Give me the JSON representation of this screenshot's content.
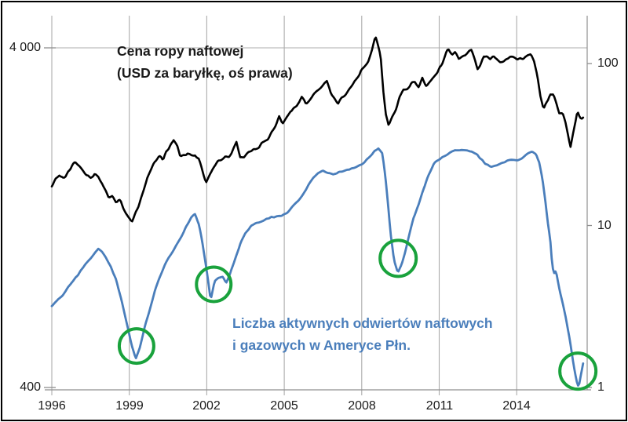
{
  "figure": {
    "background": "#FFFFFF",
    "border_color": "#000000",
    "grid_color": "#ACACAC",
    "axis_color": "#8F8F8F",
    "text_color": "#1A1A1A"
  },
  "chart_data": {
    "type": "line",
    "title": "",
    "x_axis": {
      "scale": "linear",
      "range": [
        1995.8,
        2016.75
      ],
      "ticks": [
        1996,
        1999,
        2002,
        2005,
        2008,
        2011,
        2014
      ],
      "tick_labels": [
        "1996",
        "1999",
        "2002",
        "2005",
        "2008",
        "2011",
        "2014"
      ]
    },
    "left_axis": {
      "scale": "log",
      "range": [
        400,
        5000
      ],
      "ticks": [
        4000,
        400
      ],
      "tick_labels": [
        "4 000",
        "400"
      ]
    },
    "right_axis": {
      "scale": "log",
      "range": [
        1,
        200
      ],
      "ticks": [
        100,
        10,
        1
      ],
      "tick_labels": [
        "100",
        "10",
        "1"
      ]
    },
    "grid": {
      "vertical_at_x_ticks": true,
      "horizontal_at_left_values": [
        4000
      ],
      "legend": "none"
    },
    "series": [
      {
        "id": "oil_price",
        "name": "Cena ropy naftowej (USD za baryłkę, oś prawa)",
        "axis": "right",
        "color": "#000000",
        "width": 2.6,
        "points": [
          [
            1996.0,
            17.5
          ],
          [
            1996.15,
            19
          ],
          [
            1996.3,
            20.5
          ],
          [
            1996.45,
            19.5
          ],
          [
            1996.6,
            21
          ],
          [
            1996.75,
            23
          ],
          [
            1996.9,
            24.5
          ],
          [
            1997.05,
            23.5
          ],
          [
            1997.2,
            22
          ],
          [
            1997.35,
            20.5
          ],
          [
            1997.5,
            20
          ],
          [
            1997.65,
            21
          ],
          [
            1997.8,
            20
          ],
          [
            1997.95,
            18.5
          ],
          [
            1998.1,
            16.5
          ],
          [
            1998.2,
            14.8
          ],
          [
            1998.35,
            15.5
          ],
          [
            1998.5,
            13.8
          ],
          [
            1998.65,
            14.5
          ],
          [
            1998.8,
            12.8
          ],
          [
            1998.95,
            11.4
          ],
          [
            1999.1,
            10.4
          ],
          [
            1999.25,
            12
          ],
          [
            1999.4,
            14
          ],
          [
            1999.55,
            16.5
          ],
          [
            1999.7,
            20
          ],
          [
            1999.85,
            22.5
          ],
          [
            2000.0,
            25.5
          ],
          [
            2000.15,
            27.5
          ],
          [
            2000.3,
            25.5
          ],
          [
            2000.45,
            29
          ],
          [
            2000.6,
            32
          ],
          [
            2000.72,
            34
          ],
          [
            2000.85,
            31.5
          ],
          [
            2000.97,
            26.5
          ],
          [
            2001.1,
            26.5
          ],
          [
            2001.25,
            27.5
          ],
          [
            2001.4,
            26.8
          ],
          [
            2001.55,
            27.5
          ],
          [
            2001.7,
            25.5
          ],
          [
            2001.85,
            21
          ],
          [
            2001.97,
            18
          ],
          [
            2002.1,
            20.5
          ],
          [
            2002.25,
            23
          ],
          [
            2002.4,
            25
          ],
          [
            2002.55,
            25.5
          ],
          [
            2002.7,
            26.8
          ],
          [
            2002.85,
            26.5
          ],
          [
            2003.0,
            29.5
          ],
          [
            2003.15,
            33
          ],
          [
            2003.3,
            26
          ],
          [
            2003.45,
            26.5
          ],
          [
            2003.6,
            28
          ],
          [
            2003.75,
            29
          ],
          [
            2003.9,
            29.5
          ],
          [
            2004.05,
            31
          ],
          [
            2004.2,
            33.5
          ],
          [
            2004.35,
            34
          ],
          [
            2004.5,
            37
          ],
          [
            2004.65,
            41
          ],
          [
            2004.8,
            47
          ],
          [
            2004.93,
            42
          ],
          [
            2005.08,
            46
          ],
          [
            2005.23,
            51
          ],
          [
            2005.38,
            53
          ],
          [
            2005.53,
            58
          ],
          [
            2005.68,
            63
          ],
          [
            2005.83,
            58
          ],
          [
            2005.96,
            59
          ],
          [
            2006.1,
            63
          ],
          [
            2006.25,
            68
          ],
          [
            2006.4,
            71
          ],
          [
            2006.55,
            75
          ],
          [
            2006.65,
            77
          ],
          [
            2006.8,
            66
          ],
          [
            2006.95,
            60
          ],
          [
            2007.08,
            55
          ],
          [
            2007.2,
            60
          ],
          [
            2007.35,
            64
          ],
          [
            2007.5,
            69
          ],
          [
            2007.65,
            73
          ],
          [
            2007.8,
            79
          ],
          [
            2007.95,
            90
          ],
          [
            2008.1,
            96
          ],
          [
            2008.25,
            104
          ],
          [
            2008.4,
            122
          ],
          [
            2008.53,
            146
          ],
          [
            2008.63,
            130
          ],
          [
            2008.73,
            112
          ],
          [
            2008.83,
            68
          ],
          [
            2008.93,
            48
          ],
          [
            2009.03,
            42
          ],
          [
            2009.15,
            46
          ],
          [
            2009.3,
            51
          ],
          [
            2009.45,
            61
          ],
          [
            2009.6,
            69
          ],
          [
            2009.75,
            68
          ],
          [
            2009.9,
            74
          ],
          [
            2010.05,
            77
          ],
          [
            2010.2,
            73
          ],
          [
            2010.35,
            82
          ],
          [
            2010.5,
            74
          ],
          [
            2010.65,
            77
          ],
          [
            2010.8,
            83
          ],
          [
            2010.95,
            90
          ],
          [
            2011.1,
            100
          ],
          [
            2011.25,
            118
          ],
          [
            2011.35,
            124
          ],
          [
            2011.5,
            112
          ],
          [
            2011.62,
            117
          ],
          [
            2011.75,
            107
          ],
          [
            2011.88,
            111
          ],
          [
            2012.0,
            111
          ],
          [
            2012.12,
            118
          ],
          [
            2012.25,
            121
          ],
          [
            2012.38,
            106
          ],
          [
            2012.48,
            90
          ],
          [
            2012.6,
            99
          ],
          [
            2012.72,
            112
          ],
          [
            2012.85,
            113
          ],
          [
            2012.97,
            108
          ],
          [
            2013.1,
            113
          ],
          [
            2013.22,
            108
          ],
          [
            2013.35,
            102
          ],
          [
            2013.5,
            104
          ],
          [
            2013.62,
            109
          ],
          [
            2013.75,
            112
          ],
          [
            2013.87,
            109
          ],
          [
            2014.0,
            107
          ],
          [
            2014.15,
            108
          ],
          [
            2014.3,
            106
          ],
          [
            2014.45,
            110
          ],
          [
            2014.55,
            112
          ],
          [
            2014.68,
            102
          ],
          [
            2014.8,
            85
          ],
          [
            2014.92,
            63
          ],
          [
            2015.04,
            52
          ],
          [
            2015.15,
            58
          ],
          [
            2015.3,
            64
          ],
          [
            2015.42,
            66
          ],
          [
            2015.55,
            57
          ],
          [
            2015.65,
            50
          ],
          [
            2015.78,
            50
          ],
          [
            2015.88,
            44
          ],
          [
            2016.0,
            35
          ],
          [
            2016.08,
            30
          ],
          [
            2016.2,
            38
          ],
          [
            2016.35,
            50
          ],
          [
            2016.45,
            46
          ],
          [
            2016.55,
            45
          ],
          [
            2016.6,
            47
          ]
        ]
      },
      {
        "id": "rig_count",
        "name": "Liczba aktywnych odwiertów naftowych i gazowych w Ameryce Płn.",
        "axis": "left",
        "color": "#4A7EBB",
        "width": 2.8,
        "points": [
          [
            1996.0,
            695
          ],
          [
            1996.2,
            715
          ],
          [
            1996.4,
            745
          ],
          [
            1996.6,
            785
          ],
          [
            1996.8,
            825
          ],
          [
            1997.0,
            855
          ],
          [
            1997.2,
            895
          ],
          [
            1997.4,
            945
          ],
          [
            1997.6,
            985
          ],
          [
            1997.8,
            1020
          ],
          [
            1997.95,
            1000
          ],
          [
            1998.1,
            960
          ],
          [
            1998.3,
            905
          ],
          [
            1998.5,
            830
          ],
          [
            1998.7,
            725
          ],
          [
            1998.9,
            620
          ],
          [
            1999.1,
            530
          ],
          [
            1999.25,
            487
          ],
          [
            1999.4,
            525
          ],
          [
            1999.6,
            605
          ],
          [
            1999.8,
            685
          ],
          [
            2000.0,
            780
          ],
          [
            2000.2,
            855
          ],
          [
            2000.4,
            925
          ],
          [
            2000.6,
            985
          ],
          [
            2000.8,
            1045
          ],
          [
            2001.0,
            1105
          ],
          [
            2001.2,
            1185
          ],
          [
            2001.4,
            1265
          ],
          [
            2001.55,
            1295
          ],
          [
            2001.7,
            1210
          ],
          [
            2001.85,
            1050
          ],
          [
            2002.0,
            880
          ],
          [
            2002.15,
            728
          ],
          [
            2002.3,
            825
          ],
          [
            2002.45,
            842
          ],
          [
            2002.6,
            848
          ],
          [
            2002.75,
            812
          ],
          [
            2002.9,
            862
          ],
          [
            2003.1,
            955
          ],
          [
            2003.3,
            1055
          ],
          [
            2003.5,
            1140
          ],
          [
            2003.7,
            1185
          ],
          [
            2003.9,
            1215
          ],
          [
            2004.1,
            1235
          ],
          [
            2004.3,
            1255
          ],
          [
            2004.5,
            1270
          ],
          [
            2004.7,
            1270
          ],
          [
            2004.9,
            1285
          ],
          [
            2005.1,
            1305
          ],
          [
            2005.3,
            1355
          ],
          [
            2005.5,
            1405
          ],
          [
            2005.7,
            1475
          ],
          [
            2005.9,
            1565
          ],
          [
            2006.1,
            1645
          ],
          [
            2006.3,
            1705
          ],
          [
            2006.5,
            1735
          ],
          [
            2006.7,
            1705
          ],
          [
            2006.9,
            1690
          ],
          [
            2007.1,
            1720
          ],
          [
            2007.3,
            1735
          ],
          [
            2007.5,
            1755
          ],
          [
            2007.7,
            1765
          ],
          [
            2007.9,
            1790
          ],
          [
            2008.1,
            1835
          ],
          [
            2008.3,
            1905
          ],
          [
            2008.5,
            1975
          ],
          [
            2008.65,
            2015
          ],
          [
            2008.8,
            1940
          ],
          [
            2008.92,
            1650
          ],
          [
            2009.02,
            1380
          ],
          [
            2009.12,
            1130
          ],
          [
            2009.25,
            950
          ],
          [
            2009.4,
            872
          ],
          [
            2009.55,
            925
          ],
          [
            2009.7,
            1015
          ],
          [
            2009.85,
            1135
          ],
          [
            2010.0,
            1265
          ],
          [
            2010.2,
            1385
          ],
          [
            2010.4,
            1545
          ],
          [
            2010.6,
            1705
          ],
          [
            2010.8,
            1825
          ],
          [
            2011.0,
            1875
          ],
          [
            2011.2,
            1925
          ],
          [
            2011.4,
            1965
          ],
          [
            2011.6,
            2012
          ],
          [
            2011.8,
            2000
          ],
          [
            2012.0,
            1992
          ],
          [
            2012.2,
            1990
          ],
          [
            2012.4,
            1960
          ],
          [
            2012.6,
            1892
          ],
          [
            2012.8,
            1822
          ],
          [
            2013.0,
            1782
          ],
          [
            2013.2,
            1802
          ],
          [
            2013.4,
            1832
          ],
          [
            2013.6,
            1852
          ],
          [
            2013.8,
            1862
          ],
          [
            2014.0,
            1872
          ],
          [
            2014.2,
            1892
          ],
          [
            2014.4,
            1932
          ],
          [
            2014.6,
            1972
          ],
          [
            2014.75,
            1950
          ],
          [
            2014.87,
            1840
          ],
          [
            2015.0,
            1640
          ],
          [
            2015.1,
            1440
          ],
          [
            2015.2,
            1240
          ],
          [
            2015.3,
            1090
          ],
          [
            2015.38,
            905
          ],
          [
            2015.45,
            868
          ],
          [
            2015.52,
            882
          ],
          [
            2015.62,
            800
          ],
          [
            2015.75,
            722
          ],
          [
            2015.9,
            645
          ],
          [
            2016.05,
            560
          ],
          [
            2016.2,
            470
          ],
          [
            2016.32,
            420
          ],
          [
            2016.4,
            402
          ],
          [
            2016.5,
            442
          ],
          [
            2016.6,
            487
          ]
        ]
      }
    ],
    "annotations": {
      "series_labels": [
        {
          "lines": [
            "Cena ropy naftowej",
            "(USD za baryłkę, oś prawa)"
          ],
          "color": "#1A1A1A"
        },
        {
          "lines": [
            "Liczba aktywnych odwiertów naftowych",
            "i gazowych w Ameryce Płn."
          ],
          "color": "#4A7EBB"
        }
      ],
      "highlight_circles": [
        {
          "x": 1999.28,
          "value": 530,
          "radius_px": 22
        },
        {
          "x": 2002.27,
          "value": 805,
          "radius_px": 22
        },
        {
          "x": 2009.41,
          "value": 960,
          "radius_px": 23
        },
        {
          "x": 2016.37,
          "value": 447,
          "radius_px": 23
        }
      ],
      "circle_color": "#19A23C"
    }
  }
}
